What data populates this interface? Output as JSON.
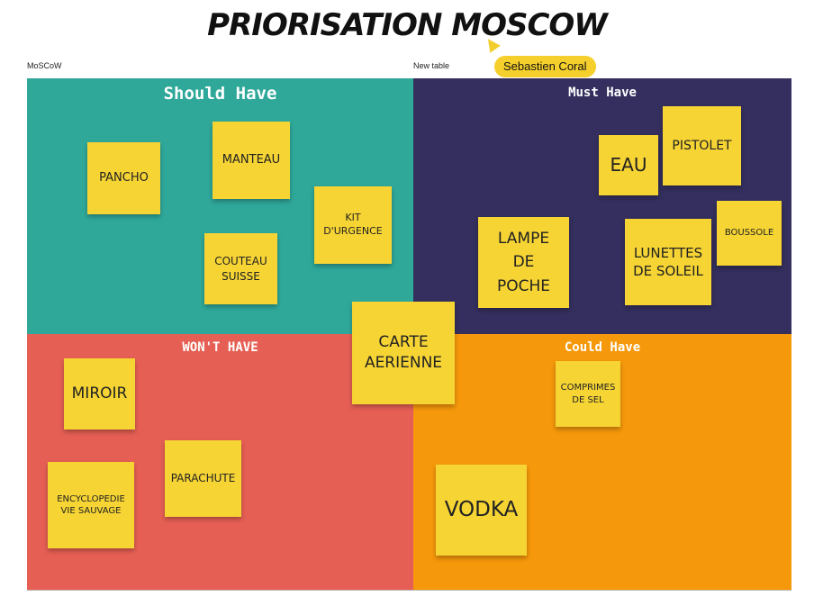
{
  "board": {
    "title": "PRIORISATION MOSCOW",
    "frame_label_left": "MoSCoW",
    "frame_label_right": "New table",
    "collaborator": "Sebastien Coral"
  },
  "colors": {
    "should": "#2fa89a",
    "must": "#342f5e",
    "wont": "#e65f54",
    "could": "#f6980b",
    "sticky": "#f6d434"
  },
  "quadrants": {
    "should": "Should Have",
    "must": "Must Have",
    "wont": "WON'T HAVE",
    "could": "Could Have"
  },
  "stickies": {
    "pancho": "PANCHO",
    "manteau": "MANTEAU",
    "kit": "KIT\nD'URGENCE",
    "couteau": "COUTEAU\nSUISSE",
    "eau": "EAU",
    "pistolet": "PISTOLET",
    "lampe": "LAMPE\nDE\nPOCHE",
    "lunettes": "LUNETTES\nDE SOLEIL",
    "boussole": "BOUSSOLE",
    "carte": "CARTE\nAERIENNE",
    "miroir": "MIROIR",
    "parachute": "PARACHUTE",
    "encyclopedie": "ENCYCLOPEDIE\nVIE SAUVAGE",
    "comprimes": "COMPRIMES\nDE SEL",
    "vodka": "VODKA"
  }
}
